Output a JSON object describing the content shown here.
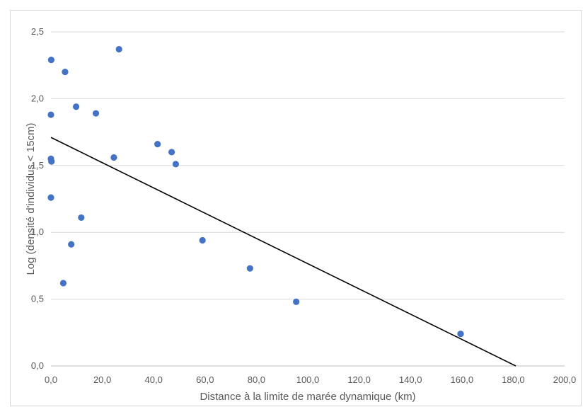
{
  "chart_data": {
    "type": "scatter",
    "title": "",
    "xlabel": "Distance à la limite de marée dynamique (km)",
    "ylabel": "Log (densité d'individus < 15cm)",
    "xlim": [
      0,
      200
    ],
    "ylim": [
      0,
      2.5
    ],
    "x_ticks": [
      "0,0",
      "20,0",
      "40,0",
      "60,0",
      "80,0",
      "100,0",
      "120,0",
      "140,0",
      "160,0",
      "180,0",
      "200,0"
    ],
    "y_ticks": [
      "0,0",
      "0,5",
      "1,0",
      "1,5",
      "2,0",
      "2,5"
    ],
    "grid": "horizontal",
    "legend": "none",
    "point_color": "#4472c4",
    "trendline_color": "#000000",
    "series": [
      {
        "points": [
          [
            0.1,
            2.29
          ],
          [
            0.0,
            1.88
          ],
          [
            0.0,
            1.55
          ],
          [
            0.2,
            1.53
          ],
          [
            0.0,
            1.26
          ],
          [
            5.5,
            2.2
          ],
          [
            4.8,
            0.62
          ],
          [
            7.9,
            0.91
          ],
          [
            9.8,
            1.94
          ],
          [
            11.8,
            1.11
          ],
          [
            17.5,
            1.89
          ],
          [
            24.5,
            1.56
          ],
          [
            26.5,
            2.37
          ],
          [
            41.5,
            1.66
          ],
          [
            47.0,
            1.6
          ],
          [
            48.6,
            1.51
          ],
          [
            59.0,
            0.94
          ],
          [
            77.5,
            0.73
          ],
          [
            95.5,
            0.48
          ],
          [
            159.5,
            0.24
          ]
        ]
      }
    ],
    "trendline": {
      "x": [
        0,
        181
      ],
      "y": [
        1.71,
        0.0
      ]
    }
  }
}
